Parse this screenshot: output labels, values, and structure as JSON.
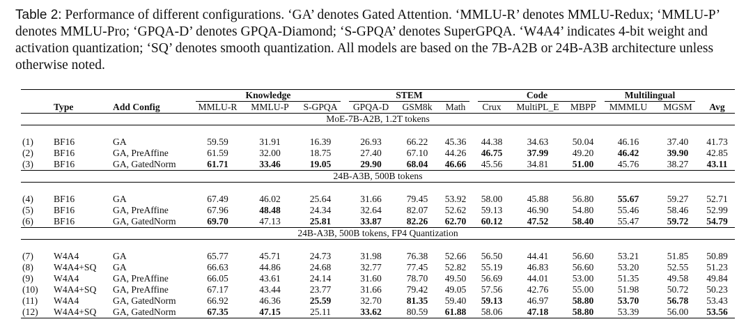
{
  "caption": {
    "label": "Table 2:",
    "text": "Performance of different configurations. ‘GA’ denotes Gated Attention. ‘MMLU-R’ denotes MMLU-Redux; ‘MMLU-P’ denotes MMLU-Pro; ‘GPQA-D’ denotes GPQA-Diamond; ‘S-GPQA’ denotes SuperGPQA. ‘W4A4’ indicates 4-bit weight and activation quantization; ‘SQ’ denotes smooth quantization. All models are based on the 7B-A2B or 24B-A3B architecture unless otherwise noted."
  },
  "table": {
    "groups": [
      {
        "label": "Knowledge",
        "span": 3
      },
      {
        "label": "STEM",
        "span": 3
      },
      {
        "label": "Code",
        "span": 3
      },
      {
        "label": "Multilingual",
        "span": 2
      }
    ],
    "columns": [
      "Type",
      "Add Config",
      "MMLU-R",
      "MMLU-P",
      "S-GPQA",
      "GPQA-D",
      "GSM8k",
      "Math",
      "Crux",
      "MultiPL_E",
      "MBPP",
      "MMMLU",
      "MGSM",
      "Avg"
    ],
    "sections": [
      {
        "title": "MoE-7B-A2B, 1.2T tokens",
        "rows": [
          {
            "cells": [
              "(1)",
              "BF16",
              "GA",
              "59.59",
              "31.91",
              "16.39",
              "26.93",
              "66.22",
              "45.36",
              "44.38",
              "34.63",
              "50.04",
              "46.16",
              "37.40",
              "41.73"
            ],
            "bold": []
          },
          {
            "cells": [
              "(2)",
              "BF16",
              "GA, PreAffine",
              "61.59",
              "32.00",
              "18.75",
              "27.40",
              "67.10",
              "44.26",
              "46.75",
              "37.99",
              "49.20",
              "46.42",
              "39.90",
              "42.85"
            ],
            "bold": [
              9,
              10,
              12,
              13
            ]
          },
          {
            "cells": [
              "(3)",
              "BF16",
              "GA, GatedNorm",
              "61.71",
              "33.46",
              "19.05",
              "29.90",
              "68.04",
              "46.66",
              "45.56",
              "34.81",
              "51.00",
              "45.76",
              "38.27",
              "43.11"
            ],
            "bold": [
              3,
              4,
              5,
              6,
              7,
              8,
              11,
              14
            ]
          }
        ]
      },
      {
        "title": "24B-A3B, 500B tokens",
        "rows": [
          {
            "cells": [
              "(4)",
              "BF16",
              "GA",
              "67.49",
              "46.02",
              "25.64",
              "31.66",
              "79.45",
              "53.92",
              "58.00",
              "45.88",
              "56.80",
              "55.67",
              "59.27",
              "52.71"
            ],
            "bold": [
              12
            ]
          },
          {
            "cells": [
              "(5)",
              "BF16",
              "GA, PreAffine",
              "67.96",
              "48.48",
              "24.34",
              "32.64",
              "82.07",
              "52.62",
              "59.13",
              "46.90",
              "54.80",
              "55.46",
              "58.46",
              "52.99"
            ],
            "bold": [
              4
            ]
          },
          {
            "cells": [
              "(6)",
              "BF16",
              "GA, GatedNorm",
              "69.70",
              "47.13",
              "25.81",
              "33.87",
              "82.26",
              "62.70",
              "60.12",
              "47.52",
              "58.40",
              "55.47",
              "59.72",
              "54.79"
            ],
            "bold": [
              3,
              5,
              6,
              7,
              8,
              9,
              10,
              11,
              13,
              14
            ]
          }
        ]
      },
      {
        "title": "24B-A3B, 500B tokens, FP4 Quantization",
        "rows": [
          {
            "cells": [
              "(7)",
              "W4A4",
              "GA",
              "65.77",
              "45.71",
              "24.73",
              "31.98",
              "76.38",
              "52.66",
              "56.50",
              "44.41",
              "56.60",
              "53.21",
              "51.85",
              "50.89"
            ],
            "bold": []
          },
          {
            "cells": [
              "(8)",
              "W4A4+SQ",
              "GA",
              "66.63",
              "44.86",
              "24.68",
              "32.77",
              "77.45",
              "52.82",
              "55.19",
              "46.83",
              "56.60",
              "53.20",
              "52.55",
              "51.23"
            ],
            "bold": []
          },
          {
            "cells": [
              "(9)",
              "W4A4",
              "GA, PreAffine",
              "66.05",
              "43.61",
              "24.14",
              "31.60",
              "78.70",
              "49.50",
              "56.69",
              "44.01",
              "53.00",
              "51.35",
              "49.58",
              "49.84"
            ],
            "bold": []
          },
          {
            "cells": [
              "(10)",
              "W4A4+SQ",
              "GA, PreAffine",
              "67.17",
              "43.44",
              "23.77",
              "31.66",
              "79.42",
              "49.05",
              "57.56",
              "42.76",
              "55.00",
              "51.98",
              "50.72",
              "50.23"
            ],
            "bold": []
          },
          {
            "cells": [
              "(11)",
              "W4A4",
              "GA, GatedNorm",
              "66.92",
              "46.36",
              "25.59",
              "32.70",
              "81.35",
              "59.40",
              "59.13",
              "46.97",
              "58.80",
              "53.70",
              "56.78",
              "53.43"
            ],
            "bold": [
              5,
              7,
              9,
              11,
              12,
              13
            ]
          },
          {
            "cells": [
              "(12)",
              "W4A4+SQ",
              "GA, GatedNorm",
              "67.35",
              "47.15",
              "25.11",
              "33.62",
              "80.59",
              "61.88",
              "58.06",
              "47.18",
              "58.80",
              "53.39",
              "56.00",
              "53.56"
            ],
            "bold": [
              3,
              4,
              6,
              8,
              10,
              11,
              14
            ]
          }
        ]
      }
    ]
  }
}
